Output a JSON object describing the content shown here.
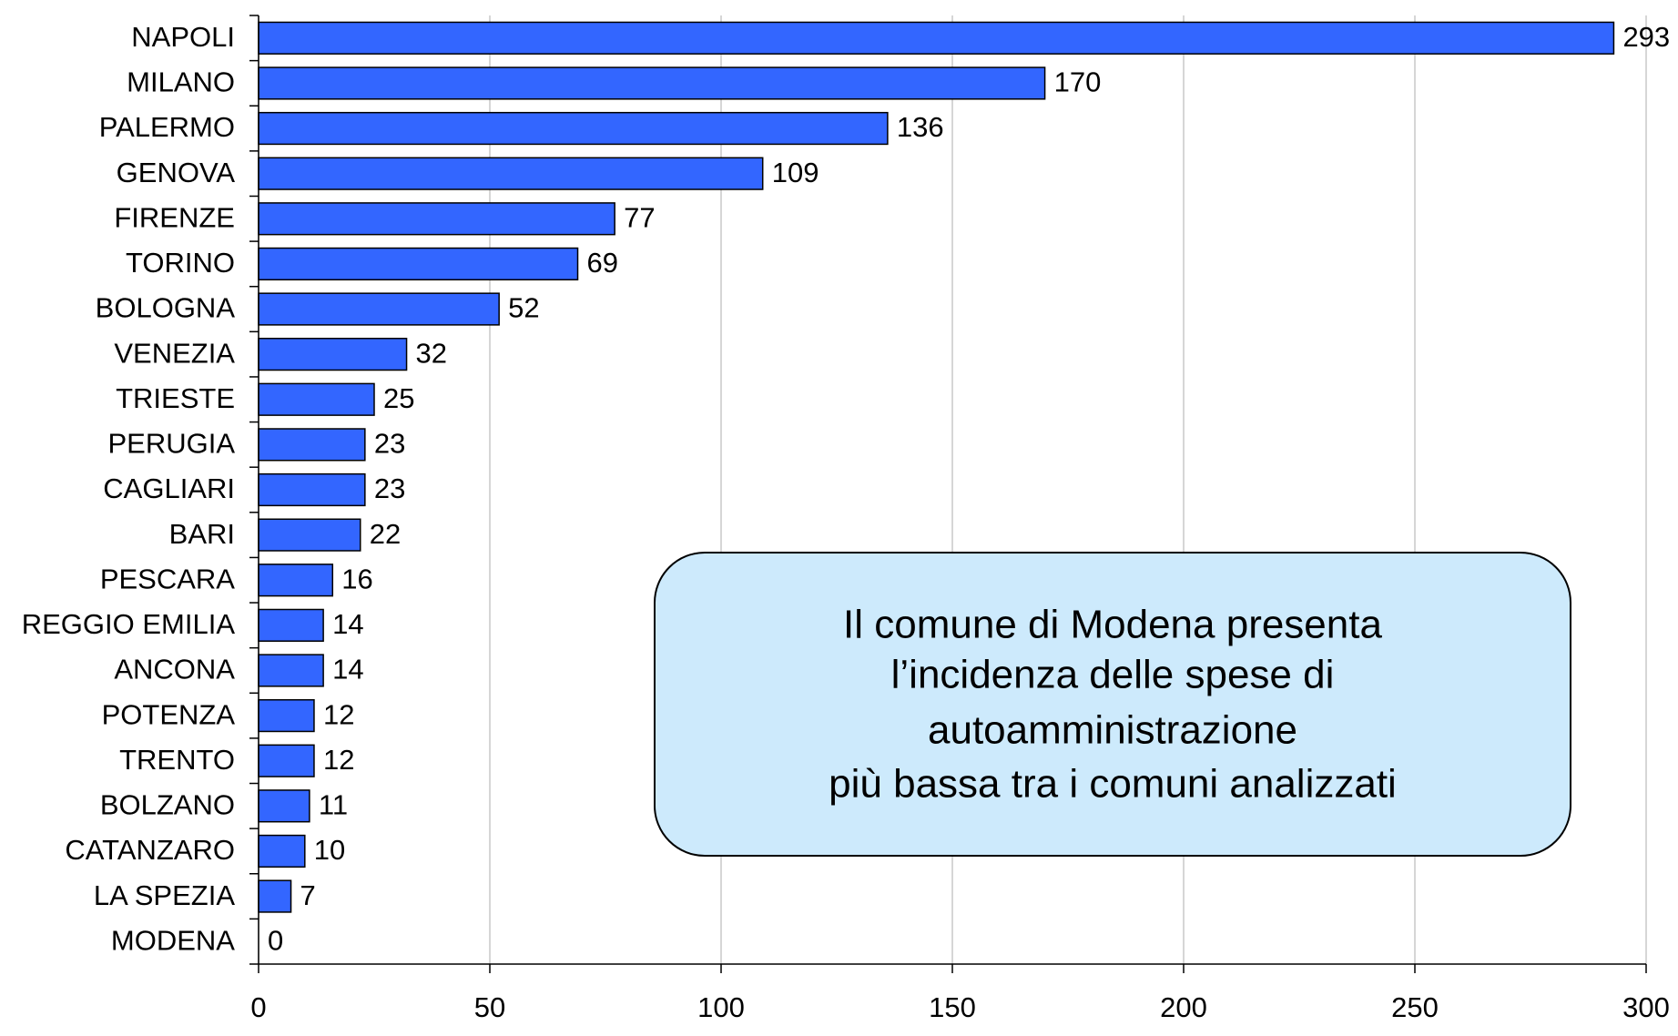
{
  "chart_data": {
    "type": "barh",
    "categories": [
      "NAPOLI",
      "MILANO",
      "PALERMO",
      "GENOVA",
      "FIRENZE",
      "TORINO",
      "BOLOGNA",
      "VENEZIA",
      "TRIESTE",
      "PERUGIA",
      "CAGLIARI",
      "BARI",
      "PESCARA",
      "REGGIO EMILIA",
      "ANCONA",
      "POTENZA",
      "TRENTO",
      "BOLZANO",
      "CATANZARO",
      "LA SPEZIA",
      "MODENA"
    ],
    "values": [
      293,
      170,
      136,
      109,
      77,
      69,
      52,
      32,
      25,
      23,
      23,
      22,
      16,
      14,
      14,
      12,
      12,
      11,
      10,
      7,
      0
    ],
    "color": "#3366ff",
    "xlim": [
      0,
      300
    ],
    "xticks": [
      0,
      50,
      100,
      150,
      200,
      250,
      300
    ],
    "grid": true,
    "annotation": [
      "Il comune di Modena presenta",
      "l’incidenza delle spese di",
      "autoamministrazione",
      "più bassa tra i comuni analizzati"
    ]
  }
}
